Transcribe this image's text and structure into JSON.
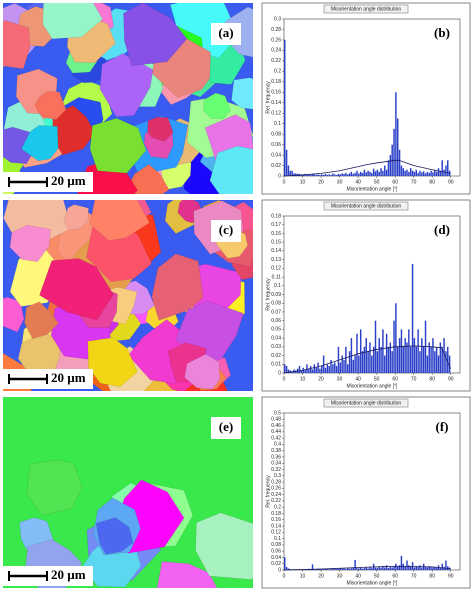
{
  "maps": [
    {
      "label": "(a)",
      "scale": "20 µm"
    },
    {
      "label": "(c)",
      "scale": "20 µm"
    },
    {
      "label": "(e)",
      "scale": "20 µm"
    }
  ],
  "chart_data": [
    {
      "type": "histogram",
      "title": "Misorientation angle distribution",
      "xlabel": "Misorientation angle [°]",
      "ylabel": "Rel. frequency",
      "panel_label": "(b)",
      "color": "#2a3fc8",
      "bins": [
        0,
        1,
        2,
        3,
        4,
        5,
        6,
        7,
        8,
        9,
        10,
        11,
        12,
        13,
        14,
        15,
        16,
        17,
        18,
        19,
        20,
        21,
        22,
        23,
        24,
        25,
        26,
        27,
        28,
        29,
        30,
        31,
        32,
        33,
        34,
        35,
        36,
        37,
        38,
        39,
        40,
        41,
        42,
        43,
        44,
        45,
        46,
        47,
        48,
        49,
        50,
        51,
        52,
        53,
        54,
        55,
        56,
        57,
        58,
        59,
        60,
        61,
        62,
        63,
        64,
        65,
        66,
        67,
        68,
        69,
        70,
        71,
        72,
        73,
        74,
        75,
        76,
        77,
        78,
        79,
        80,
        81,
        82,
        83,
        84,
        85,
        86,
        87,
        88,
        89,
        90
      ],
      "counts": [
        0.26,
        0.05,
        0.02,
        0.01,
        0.01,
        0.005,
        0.005,
        0.004,
        0.004,
        0.003,
        0.003,
        0.004,
        0.002,
        0.003,
        0.002,
        0.004,
        0.003,
        0.002,
        0.003,
        0.002,
        0.003,
        0.002,
        0.004,
        0.002,
        0.003,
        0.002,
        0.005,
        0.003,
        0.002,
        0.004,
        0.003,
        0.005,
        0.004,
        0.006,
        0.003,
        0.005,
        0.008,
        0.004,
        0.006,
        0.01,
        0.005,
        0.008,
        0.006,
        0.012,
        0.007,
        0.01,
        0.008,
        0.006,
        0.014,
        0.009,
        0.012,
        0.008,
        0.015,
        0.01,
        0.02,
        0.012,
        0.03,
        0.04,
        0.06,
        0.09,
        0.16,
        0.11,
        0.05,
        0.02,
        0.015,
        0.01,
        0.012,
        0.008,
        0.015,
        0.01,
        0.008,
        0.012,
        0.006,
        0.01,
        0.007,
        0.009,
        0.005,
        0.008,
        0.006,
        0.01,
        0.007,
        0.012,
        0.008,
        0.015,
        0.01,
        0.03,
        0.012,
        0.02,
        0.03,
        0.01
      ],
      "fit": {
        "color": "#1a1a60",
        "x": [
          0,
          10,
          20,
          30,
          40,
          45,
          50,
          60,
          62,
          70,
          80,
          90
        ],
        "values": [
          0,
          0.002,
          0.005,
          0.01,
          0.018,
          0.022,
          0.025,
          0.03,
          0.03,
          0.02,
          0.012,
          0.005
        ]
      },
      "xlim": [
        0,
        95
      ],
      "ylim": [
        0,
        0.3
      ],
      "xticks": [
        0,
        10,
        20,
        30,
        40,
        50,
        60,
        70,
        80,
        90
      ],
      "yticks": [
        0,
        0.02,
        0.04,
        0.06,
        0.08,
        0.1,
        0.12,
        0.14,
        0.16,
        0.18,
        0.2,
        0.22,
        0.24,
        0.26,
        0.28,
        0.3
      ]
    },
    {
      "type": "histogram",
      "title": "Misorientation angle distribution",
      "xlabel": "Misorientation angle [°]",
      "ylabel": "Rel. frequency",
      "panel_label": "(d)",
      "color": "#2a3fc8",
      "bins": [
        0,
        1,
        2,
        3,
        4,
        5,
        6,
        7,
        8,
        9,
        10,
        11,
        12,
        13,
        14,
        15,
        16,
        17,
        18,
        19,
        20,
        21,
        22,
        23,
        24,
        25,
        26,
        27,
        28,
        29,
        30,
        31,
        32,
        33,
        34,
        35,
        36,
        37,
        38,
        39,
        40,
        41,
        42,
        43,
        44,
        45,
        46,
        47,
        48,
        49,
        50,
        51,
        52,
        53,
        54,
        55,
        56,
        57,
        58,
        59,
        60,
        61,
        62,
        63,
        64,
        65,
        66,
        67,
        68,
        69,
        70,
        71,
        72,
        73,
        74,
        75,
        76,
        77,
        78,
        79,
        80,
        81,
        82,
        83,
        84,
        85,
        86,
        87,
        88,
        89,
        90
      ],
      "counts": [
        0.01,
        0.008,
        0.004,
        0.003,
        0.002,
        0.004,
        0.003,
        0.005,
        0.008,
        0.003,
        0.006,
        0.004,
        0.01,
        0.005,
        0.008,
        0.004,
        0.01,
        0.006,
        0.012,
        0.005,
        0.008,
        0.02,
        0.006,
        0.01,
        0.008,
        0.015,
        0.01,
        0.012,
        0.008,
        0.03,
        0.012,
        0.02,
        0.015,
        0.03,
        0.01,
        0.025,
        0.04,
        0.015,
        0.02,
        0.045,
        0.02,
        0.05,
        0.025,
        0.03,
        0.04,
        0.025,
        0.035,
        0.02,
        0.03,
        0.06,
        0.025,
        0.04,
        0.03,
        0.05,
        0.02,
        0.045,
        0.03,
        0.035,
        0.025,
        0.06,
        0.08,
        0.03,
        0.04,
        0.05,
        0.03,
        0.04,
        0.035,
        0.05,
        0.03,
        0.125,
        0.04,
        0.03,
        0.05,
        0.025,
        0.04,
        0.03,
        0.06,
        0.02,
        0.035,
        0.03,
        0.04,
        0.025,
        0.03,
        0.02,
        0.035,
        0.03,
        0.04,
        0.025,
        0.03,
        0.02
      ],
      "fit": {
        "color": "#1a1a60",
        "x": [
          0,
          10,
          20,
          30,
          40,
          50,
          60,
          70,
          80,
          85,
          90
        ],
        "values": [
          0,
          0.003,
          0.008,
          0.015,
          0.022,
          0.027,
          0.03,
          0.031,
          0.03,
          0.029,
          0.005
        ]
      },
      "xlim": [
        0,
        95
      ],
      "ylim": [
        0,
        0.18
      ],
      "xticks": [
        0,
        10,
        20,
        30,
        40,
        50,
        60,
        70,
        80,
        90
      ],
      "yticks": [
        0,
        0.01,
        0.02,
        0.03,
        0.04,
        0.05,
        0.06,
        0.07,
        0.08,
        0.09,
        0.1,
        0.11,
        0.12,
        0.13,
        0.14,
        0.15,
        0.16,
        0.17,
        0.18
      ]
    },
    {
      "type": "histogram",
      "title": "Misorientation angle distribution",
      "xlabel": "Misorientation angle [°]",
      "ylabel": "Rel. frequency",
      "panel_label": "(f)",
      "color": "#2a3fc8",
      "bins": [
        0,
        1,
        2,
        3,
        4,
        5,
        6,
        7,
        8,
        9,
        10,
        11,
        12,
        13,
        14,
        15,
        16,
        17,
        18,
        19,
        20,
        21,
        22,
        23,
        24,
        25,
        26,
        27,
        28,
        29,
        30,
        31,
        32,
        33,
        34,
        35,
        36,
        37,
        38,
        39,
        40,
        41,
        42,
        43,
        44,
        45,
        46,
        47,
        48,
        49,
        50,
        51,
        52,
        53,
        54,
        55,
        56,
        57,
        58,
        59,
        60,
        61,
        62,
        63,
        64,
        65,
        66,
        67,
        68,
        69,
        70,
        71,
        72,
        73,
        74,
        75,
        76,
        77,
        78,
        79,
        80,
        81,
        82,
        83,
        84,
        85,
        86,
        87,
        88,
        89,
        90
      ],
      "counts": [
        0.04,
        0.01,
        0.005,
        0.003,
        0.002,
        0.003,
        0.002,
        0.002,
        0.003,
        0.002,
        0.002,
        0.003,
        0.002,
        0.004,
        0.002,
        0.018,
        0.003,
        0.002,
        0.004,
        0.002,
        0.003,
        0.002,
        0.004,
        0.003,
        0.002,
        0.004,
        0.003,
        0.005,
        0.003,
        0.004,
        0.006,
        0.004,
        0.005,
        0.003,
        0.006,
        0.004,
        0.005,
        0.008,
        0.032,
        0.006,
        0.005,
        0.007,
        0.004,
        0.006,
        0.008,
        0.005,
        0.01,
        0.006,
        0.02,
        0.007,
        0.006,
        0.01,
        0.007,
        0.012,
        0.008,
        0.015,
        0.006,
        0.01,
        0.008,
        0.012,
        0.02,
        0.01,
        0.015,
        0.045,
        0.02,
        0.012,
        0.03,
        0.015,
        0.01,
        0.025,
        0.008,
        0.012,
        0.01,
        0.015,
        0.008,
        0.02,
        0.01,
        0.008,
        0.012,
        0.01,
        0.008,
        0.01,
        0.007,
        0.015,
        0.008,
        0.02,
        0.01,
        0.03,
        0.012,
        0.008
      ],
      "fit": {
        "color": "#1a1a60",
        "x": [
          0,
          20,
          40,
          60,
          80,
          90
        ],
        "values": [
          0,
          0.003,
          0.008,
          0.012,
          0.01,
          0.004
        ]
      },
      "xlim": [
        0,
        95
      ],
      "ylim": [
        0,
        0.5
      ],
      "xticks": [
        0,
        10,
        20,
        30,
        40,
        50,
        60,
        70,
        80,
        90
      ],
      "yticks": [
        0,
        0.02,
        0.04,
        0.06,
        0.08,
        0.1,
        0.12,
        0.14,
        0.16,
        0.18,
        0.2,
        0.22,
        0.24,
        0.26,
        0.28,
        0.3,
        0.32,
        0.34,
        0.36,
        0.38,
        0.4,
        0.42,
        0.44,
        0.46,
        0.48,
        0.5
      ]
    }
  ]
}
